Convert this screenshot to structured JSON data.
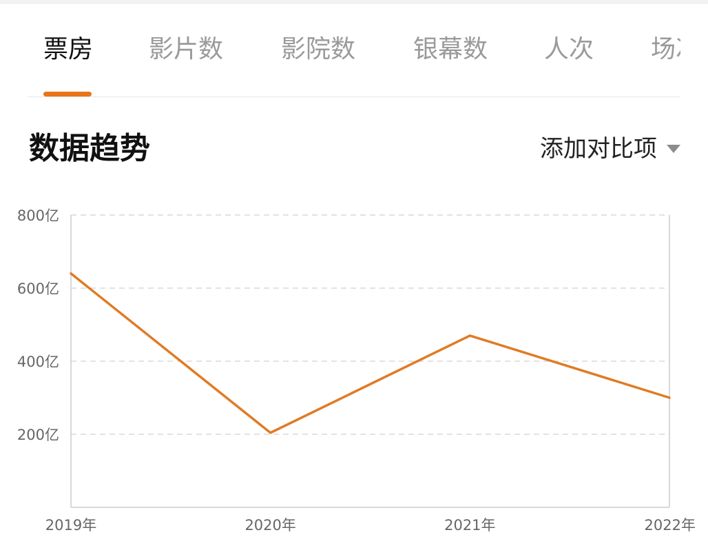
{
  "tabs": [
    {
      "label": "票房",
      "active": true
    },
    {
      "label": "影片数",
      "active": false
    },
    {
      "label": "影院数",
      "active": false
    },
    {
      "label": "银幕数",
      "active": false
    },
    {
      "label": "人次",
      "active": false
    },
    {
      "label": "场次",
      "active": false
    }
  ],
  "section": {
    "title": "数据趋势",
    "compare_label": "添加对比项",
    "compare_icon": "caret-down-icon"
  },
  "colors": {
    "accent": "#e8741a",
    "line": "#e07b24",
    "grid": "#d9d9d9",
    "axis": "#cccccc"
  },
  "chart_data": {
    "type": "line",
    "categories": [
      "2019年",
      "2020年",
      "2021年",
      "2022年"
    ],
    "series": [
      {
        "values": [
          640,
          204,
          470,
          300
        ]
      }
    ],
    "ylim": [
      0,
      800
    ],
    "yticks": [
      200,
      400,
      600,
      800
    ],
    "ytick_labels": [
      "200亿",
      "400亿",
      "600亿",
      "800亿"
    ],
    "grid": true,
    "title": "",
    "xlabel": "",
    "ylabel": ""
  }
}
